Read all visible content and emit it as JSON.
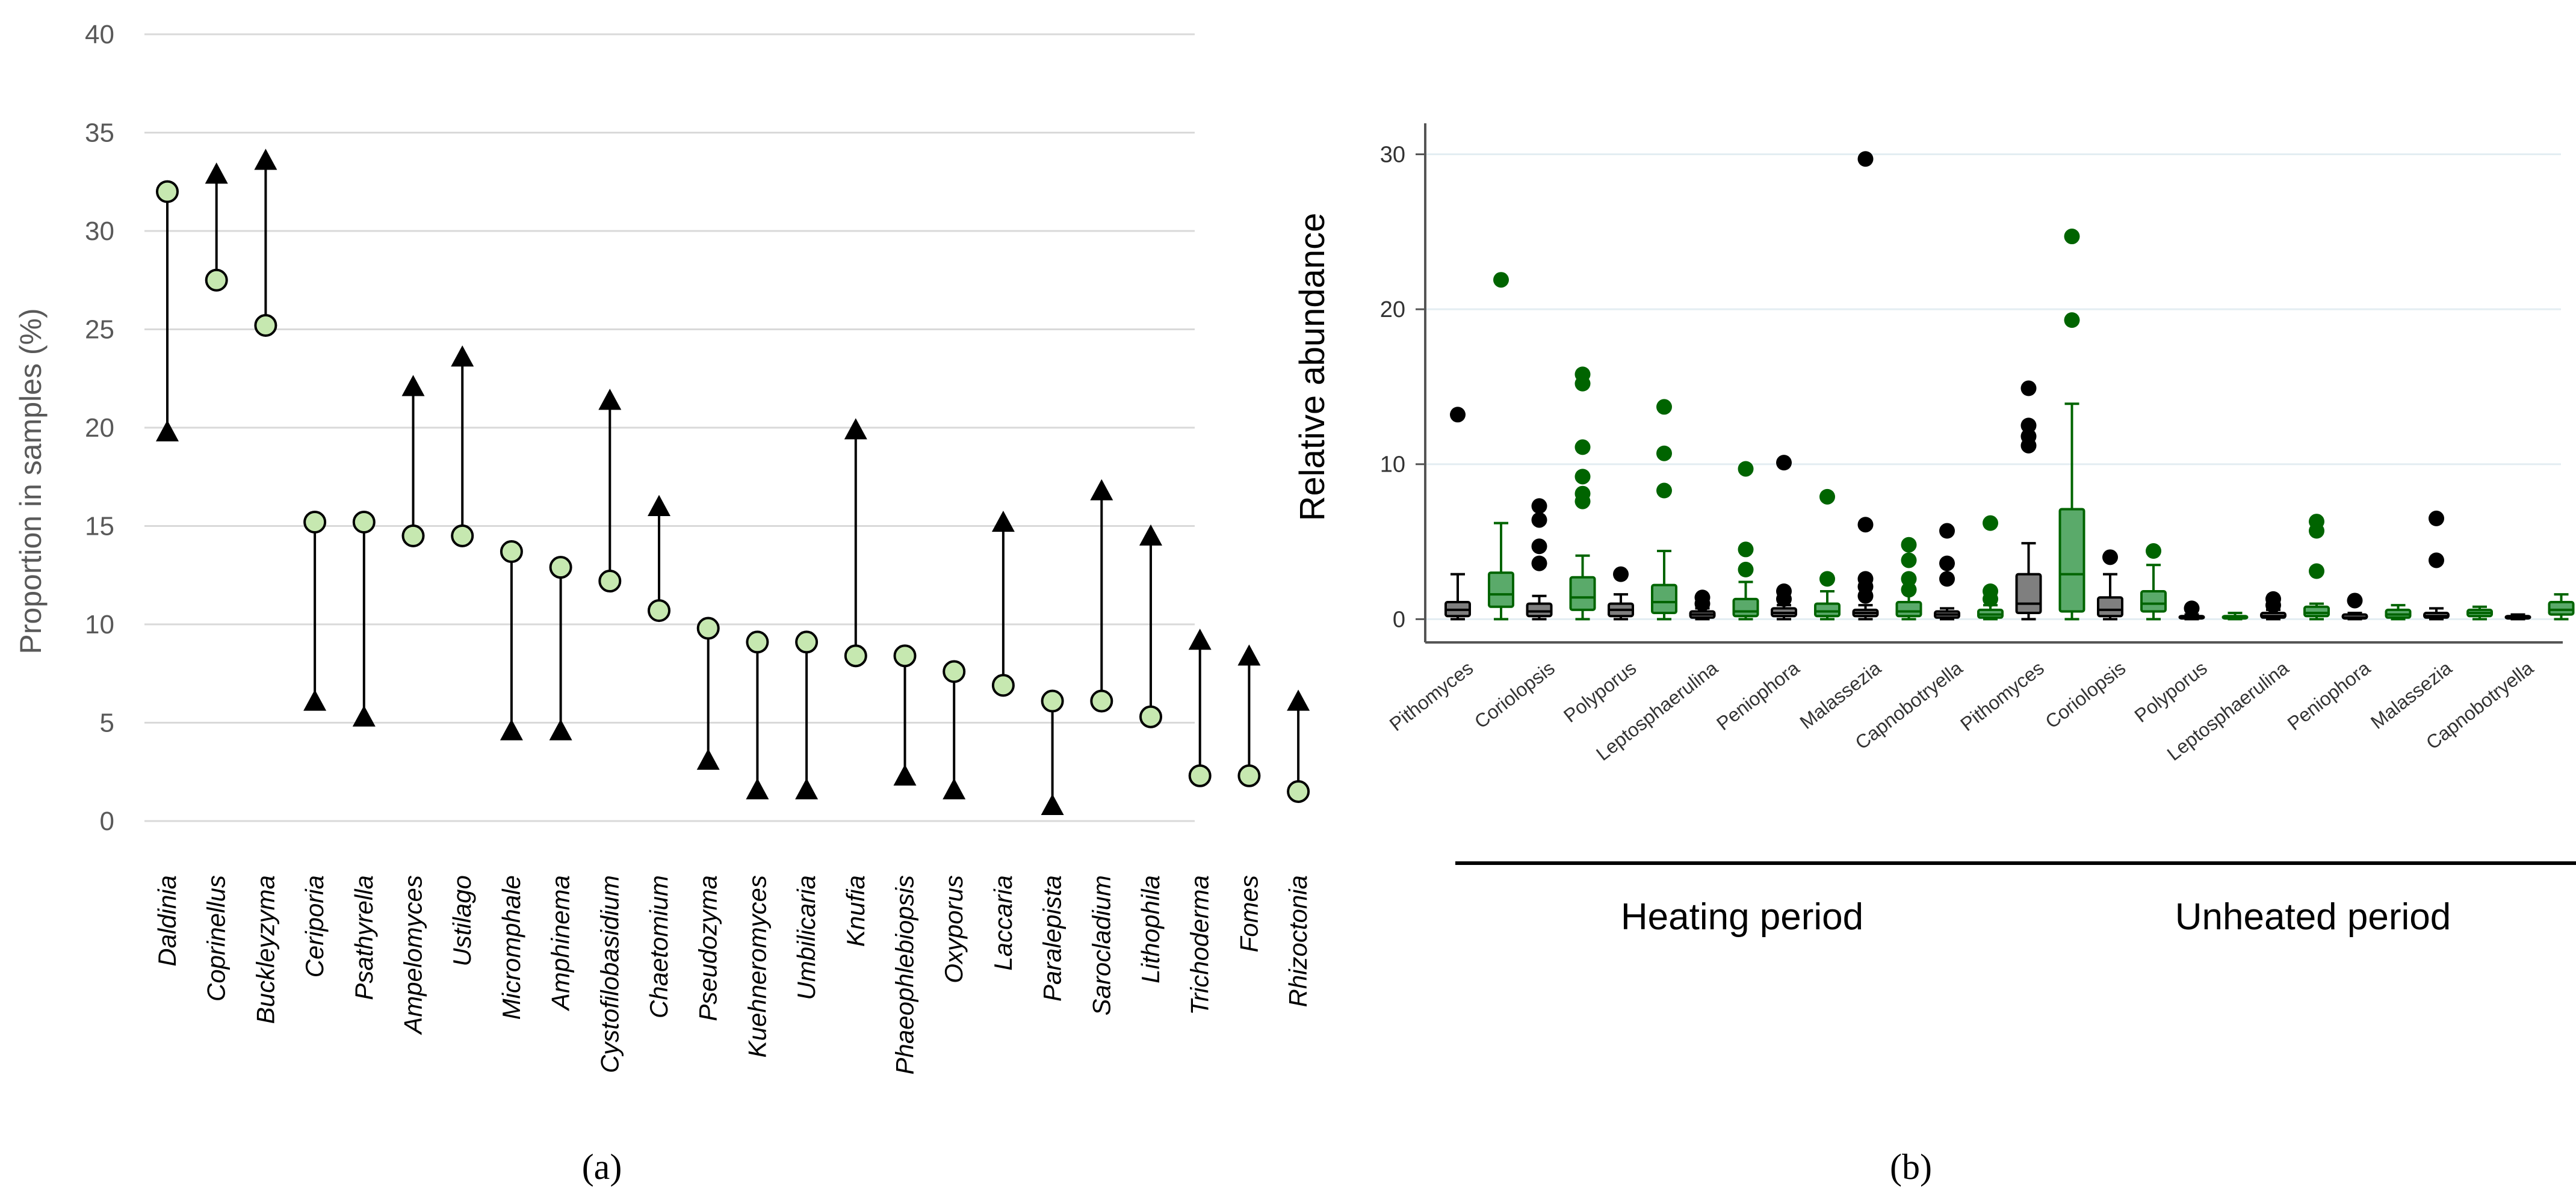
{
  "chart_data": [
    {
      "type": "dumbbell",
      "panel_label": "(a)",
      "ylabel": "Proportion in samples (%)",
      "ylim": [
        0,
        40
      ],
      "yticks": [
        0,
        5,
        10,
        15,
        20,
        25,
        30,
        35,
        40
      ],
      "grid": true,
      "series": [
        {
          "name": "circle",
          "marker": "circle",
          "color": "#c6e8b0"
        },
        {
          "name": "triangle",
          "marker": "triangle",
          "color": "#000000"
        }
      ],
      "categories": [
        "Daldinia",
        "Coprinellus",
        "Buckleyzyma",
        "Ceriporia",
        "Psathyrella",
        "Ampelomyces",
        "Ustilago",
        "Micromphale",
        "Amphinema",
        "Cystofilobasidium",
        "Chaetomium",
        "Pseudozyma",
        "Kuehneromyces",
        "Umbilicaria",
        "Knufia",
        "Phaeophlebiopsis",
        "Oxyporus",
        "Laccaria",
        "Paralepista",
        "Sarocladium",
        "Lithophila",
        "Trichoderma",
        "Fomes",
        "Rhizoctonia"
      ],
      "circle_values": [
        32.0,
        27.5,
        25.2,
        15.2,
        15.2,
        14.5,
        14.5,
        13.7,
        12.9,
        12.2,
        10.7,
        9.8,
        9.1,
        9.1,
        8.4,
        8.4,
        7.6,
        6.9,
        6.1,
        6.1,
        5.3,
        2.3,
        2.3,
        1.5
      ],
      "triangle_values": [
        19.8,
        32.9,
        33.6,
        6.1,
        5.3,
        22.1,
        23.6,
        4.6,
        4.6,
        21.4,
        16.0,
        3.1,
        1.6,
        1.6,
        19.9,
        2.3,
        1.6,
        15.2,
        0.8,
        16.8,
        14.5,
        9.2,
        8.4,
        6.1
      ]
    },
    {
      "type": "boxplot",
      "panel_label": "(b)",
      "ylabel": "Relative abundance",
      "ylim": [
        -1.5,
        32
      ],
      "yticks": [
        0,
        10,
        20,
        30
      ],
      "grid": true,
      "series": [
        {
          "name": "black",
          "color": "#000000",
          "box_fill": "#7f7f7f"
        },
        {
          "name": "green",
          "color": "#006400",
          "box_fill": "#5aaa6a"
        }
      ],
      "groups": [
        {
          "name": "Heating period",
          "categories": [
            "Pithomyces",
            "Coriolopsis",
            "Polyporus",
            "Leptosphaerulina",
            "Peniophora",
            "Malassezia",
            "Capnobotryella"
          ],
          "black": [
            {
              "min": 0,
              "q1": 0.2,
              "median": 0.6,
              "q3": 1.1,
              "max": 2.9,
              "outliers": [
                13.2
              ]
            },
            {
              "min": 0,
              "q1": 0.2,
              "median": 0.5,
              "q3": 1.0,
              "max": 1.5,
              "outliers": [
                7.3,
                6.4,
                4.7,
                3.6
              ]
            },
            {
              "min": 0,
              "q1": 0.2,
              "median": 0.6,
              "q3": 1.0,
              "max": 1.6,
              "outliers": [
                2.9
              ]
            },
            {
              "min": 0,
              "q1": 0.1,
              "median": 0.3,
              "q3": 0.5,
              "max": 0.7,
              "outliers": [
                1.4,
                1.0
              ]
            },
            {
              "min": 0,
              "q1": 0.2,
              "median": 0.4,
              "q3": 0.7,
              "max": 0.9,
              "outliers": [
                10.1,
                1.8,
                1.3
              ]
            },
            {
              "min": 0,
              "q1": 0.2,
              "median": 0.4,
              "q3": 0.6,
              "max": 0.9,
              "outliers": [
                29.7,
                6.1,
                2.6,
                2.1,
                1.5
              ]
            },
            {
              "min": 0,
              "q1": 0.1,
              "median": 0.3,
              "q3": 0.5,
              "max": 0.7,
              "outliers": [
                5.7,
                3.6,
                2.6
              ]
            }
          ],
          "green": [
            {
              "min": 0,
              "q1": 0.8,
              "median": 1.6,
              "q3": 3.0,
              "max": 6.2,
              "outliers": [
                21.9
              ]
            },
            {
              "min": 0,
              "q1": 0.6,
              "median": 1.4,
              "q3": 2.7,
              "max": 4.1,
              "outliers": [
                15.8,
                15.2,
                11.1,
                9.2,
                8.1,
                7.6
              ]
            },
            {
              "min": 0,
              "q1": 0.4,
              "median": 1.1,
              "q3": 2.2,
              "max": 4.4,
              "outliers": [
                13.7,
                10.7,
                8.3
              ]
            },
            {
              "min": 0,
              "q1": 0.2,
              "median": 0.5,
              "q3": 1.3,
              "max": 2.4,
              "outliers": [
                9.7,
                4.5,
                3.2
              ]
            },
            {
              "min": 0,
              "q1": 0.2,
              "median": 0.5,
              "q3": 1.0,
              "max": 1.8,
              "outliers": [
                7.9,
                2.6
              ]
            },
            {
              "min": 0,
              "q1": 0.2,
              "median": 0.5,
              "q3": 1.1,
              "max": 1.9,
              "outliers": [
                4.8,
                3.8,
                2.6,
                1.9
              ]
            },
            {
              "min": 0,
              "q1": 0.1,
              "median": 0.3,
              "q3": 0.6,
              "max": 0.9,
              "outliers": [
                6.2,
                1.8,
                1.3
              ]
            }
          ]
        },
        {
          "name": "Unheated period",
          "categories": [
            "Pithomyces",
            "Coriolopsis",
            "Polyporus",
            "Leptosphaerulina",
            "Peniophora",
            "Malassezia",
            "Capnobotryella"
          ],
          "black": [
            {
              "min": 0,
              "q1": 0.4,
              "median": 1.0,
              "q3": 2.9,
              "max": 4.9,
              "outliers": [
                14.9,
                12.5,
                11.8,
                11.2
              ]
            },
            {
              "min": 0,
              "q1": 0.2,
              "median": 0.6,
              "q3": 1.4,
              "max": 2.9,
              "outliers": [
                4.0
              ]
            },
            {
              "min": 0,
              "q1": 0.05,
              "median": 0.1,
              "q3": 0.2,
              "max": 0.3,
              "outliers": [
                0.7
              ]
            },
            {
              "min": 0,
              "q1": 0.1,
              "median": 0.2,
              "q3": 0.4,
              "max": 0.6,
              "outliers": [
                1.3,
                0.9
              ]
            },
            {
              "min": 0,
              "q1": 0.05,
              "median": 0.1,
              "q3": 0.3,
              "max": 0.4,
              "outliers": [
                1.2
              ]
            },
            {
              "min": 0,
              "q1": 0.1,
              "median": 0.2,
              "q3": 0.4,
              "max": 0.7,
              "outliers": [
                6.5,
                3.8
              ]
            },
            {
              "min": 0,
              "q1": 0.05,
              "median": 0.1,
              "q3": 0.2,
              "max": 0.3,
              "outliers": []
            }
          ],
          "green": [
            {
              "min": 0,
              "q1": 0.5,
              "median": 2.9,
              "q3": 7.1,
              "max": 13.9,
              "outliers": [
                24.7,
                19.3
              ]
            },
            {
              "min": 0,
              "q1": 0.5,
              "median": 1.0,
              "q3": 1.8,
              "max": 3.5,
              "outliers": [
                4.4
              ]
            },
            {
              "min": 0,
              "q1": 0.05,
              "median": 0.1,
              "q3": 0.2,
              "max": 0.4,
              "outliers": []
            },
            {
              "min": 0,
              "q1": 0.2,
              "median": 0.4,
              "q3": 0.8,
              "max": 1.0,
              "outliers": [
                6.3,
                5.7,
                3.1
              ]
            },
            {
              "min": 0,
              "q1": 0.1,
              "median": 0.3,
              "q3": 0.6,
              "max": 0.9,
              "outliers": []
            },
            {
              "min": 0,
              "q1": 0.2,
              "median": 0.4,
              "q3": 0.6,
              "max": 0.8,
              "outliers": []
            },
            {
              "min": 0,
              "q1": 0.3,
              "median": 0.6,
              "q3": 1.1,
              "max": 1.6,
              "outliers": []
            }
          ]
        }
      ]
    }
  ]
}
